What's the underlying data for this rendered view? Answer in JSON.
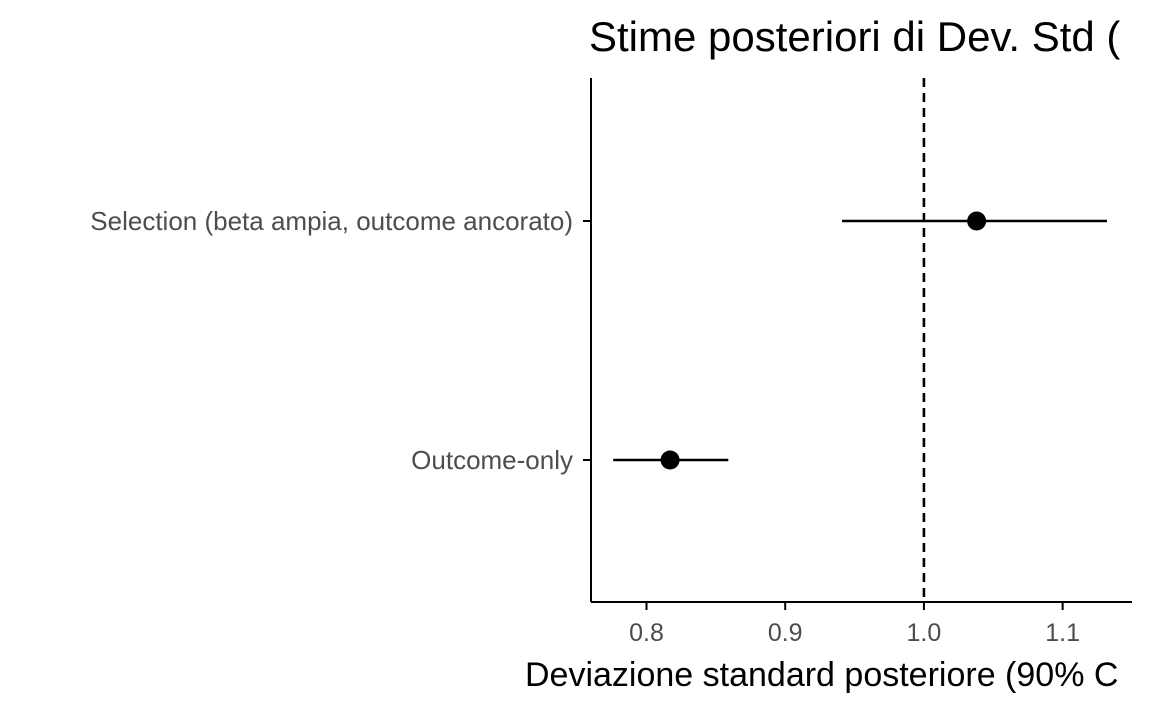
{
  "chart_data": {
    "type": "scatter",
    "subtype": "pointrange",
    "title": "Stime posteriori di Dev. Std (",
    "xlabel": "Deviazione standard posteriore (90% C",
    "ylabel": "",
    "xlim": [
      0.76,
      1.15
    ],
    "x_ticks": [
      0.8,
      0.9,
      1.0,
      1.1
    ],
    "x_tick_labels": [
      "0.8",
      "0.9",
      "1.0",
      "1.1"
    ],
    "categories": [
      "Selection (beta ampia, outcome ancorato)",
      "Outcome-only"
    ],
    "points": [
      {
        "label": "Selection (beta ampia, outcome ancorato)",
        "estimate": 1.038,
        "lower": 0.941,
        "upper": 1.132
      },
      {
        "label": "Outcome-only",
        "estimate": 0.817,
        "lower": 0.776,
        "upper": 0.859
      }
    ],
    "reference_line": {
      "x": 1.0,
      "style": "dashed"
    },
    "grid": false,
    "legend": "none",
    "colors": {
      "point": "#000000",
      "interval": "#000000",
      "axis": "#000000",
      "tick_label": "#4d4d4d"
    }
  }
}
